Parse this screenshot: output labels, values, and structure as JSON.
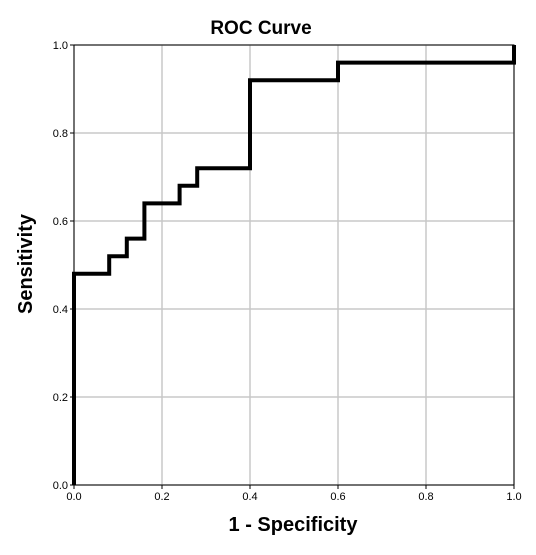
{
  "chart_data": {
    "type": "line",
    "title": "ROC Curve",
    "xlabel": "1 - Specificity",
    "ylabel": "Sensitivity",
    "xlim": [
      0,
      1
    ],
    "ylim": [
      0,
      1
    ],
    "x_ticks": [
      "0.0",
      "0.2",
      "0.4",
      "0.6",
      "0.8",
      "1.0"
    ],
    "y_ticks": [
      "0.0",
      "0.2",
      "0.4",
      "0.6",
      "0.8",
      "1.0"
    ],
    "grid": true,
    "legend": "none",
    "series": [
      {
        "x": [
          0,
          0,
          0.08,
          0.08,
          0.12,
          0.12,
          0.16,
          0.16,
          0.24,
          0.24,
          0.28,
          0.28,
          0.4,
          0.4,
          0.6,
          0.6,
          1.0,
          1.0
        ],
        "y": [
          0,
          0.48,
          0.48,
          0.52,
          0.52,
          0.56,
          0.56,
          0.64,
          0.64,
          0.68,
          0.68,
          0.72,
          0.72,
          0.92,
          0.92,
          0.96,
          0.96,
          1.0
        ],
        "color": "#000000"
      }
    ],
    "colors": {
      "grid": "#c8c8c8",
      "frame": "#000000",
      "line": "#000000",
      "background": "#ffffff"
    }
  }
}
